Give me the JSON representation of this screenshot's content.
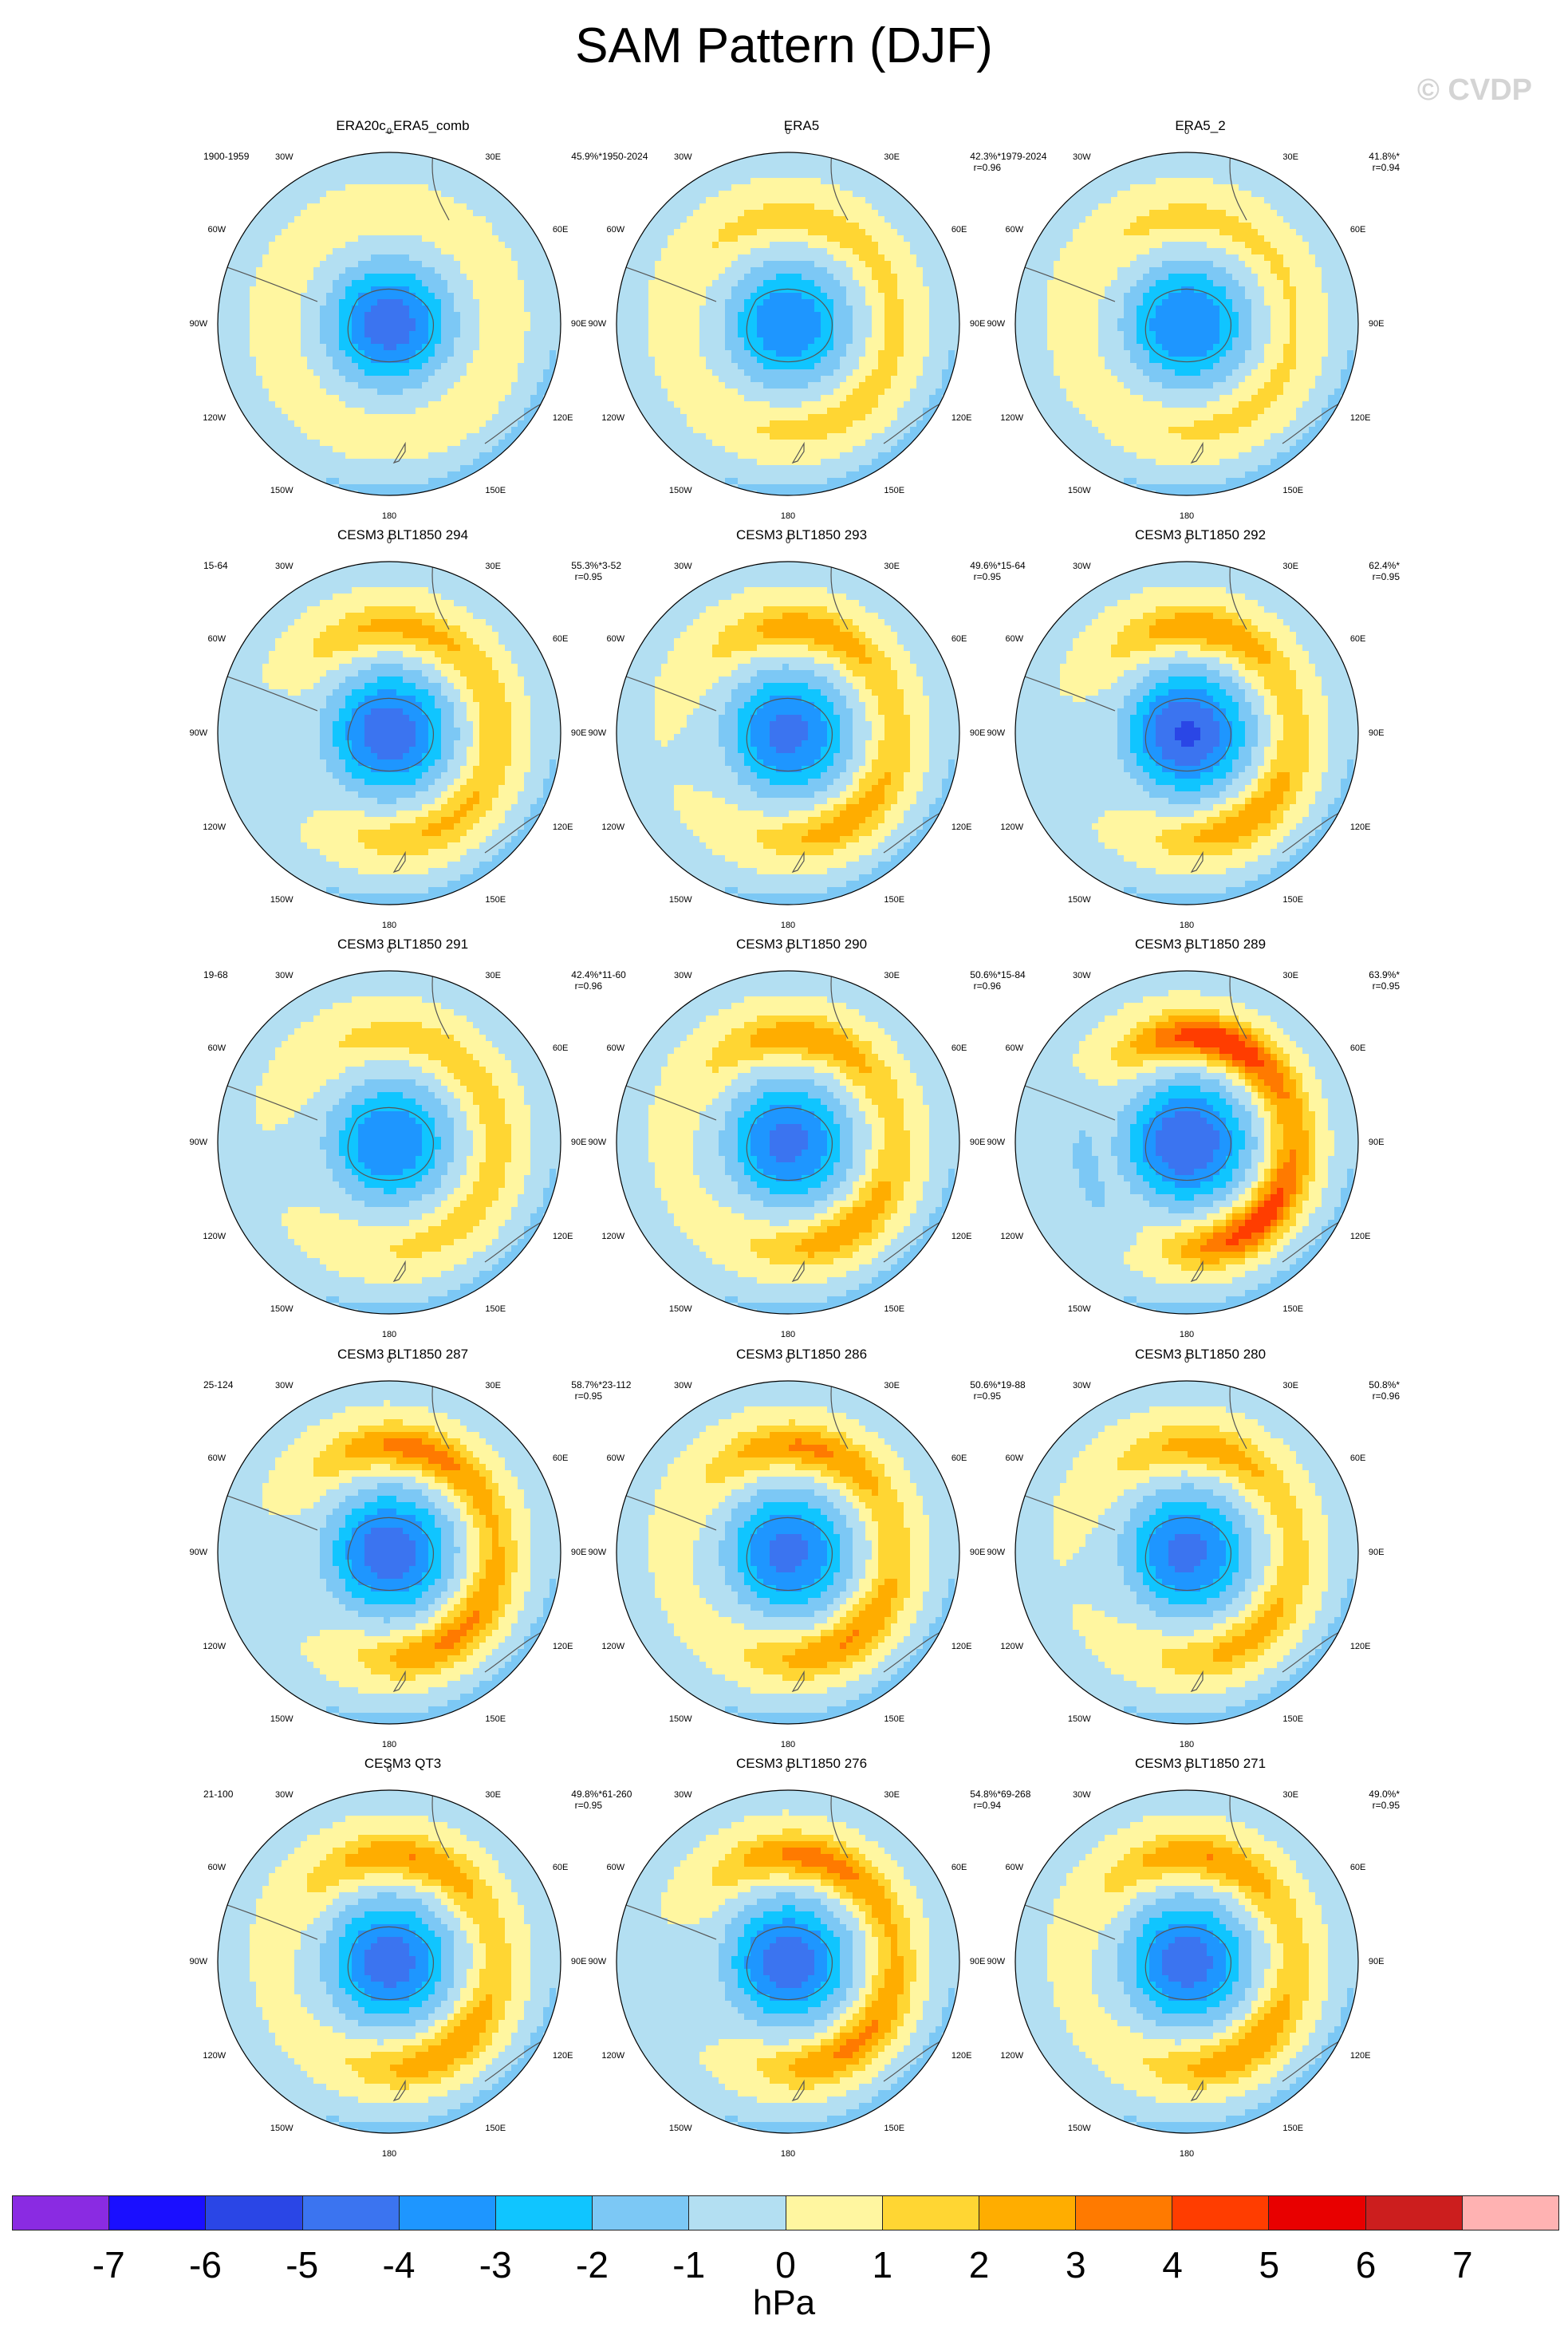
{
  "figure": {
    "title": "SAM Pattern (DJF)",
    "copyright": "© CVDP"
  },
  "map_labels": {
    "top": "0",
    "bottom": "180",
    "upper_left": "30W",
    "upper_right": "30E",
    "mid_left_high": "60W",
    "mid_right_high": "60E",
    "left": "90W",
    "right": "90E",
    "mid_left_low": "120W",
    "mid_right_low": "120E",
    "lower_left": "150W",
    "lower_right": "150E"
  },
  "colorbar": {
    "units": "hPa",
    "colors": [
      "#8a2be2",
      "#1a0fff",
      "#2a46e6",
      "#3b74f0",
      "#1e96ff",
      "#10c5ff",
      "#7cc8f5",
      "#b3dff2",
      "#fff6a0",
      "#ffd633",
      "#ffad00",
      "#ff7a00",
      "#ff3d00",
      "#e80000",
      "#cc1e1e",
      "#ffb2b2"
    ],
    "tick_labels": [
      "-7",
      "-6",
      "-5",
      "-4",
      "-3",
      "-2",
      "-1",
      "0",
      "1",
      "2",
      "3",
      "4",
      "5",
      "6",
      "7"
    ]
  },
  "chart_data": {
    "type": "heatmap",
    "title": "SAM Pattern (DJF)",
    "variable_units": "hPa",
    "projection": "south polar stereographic",
    "contour_levels": [
      -7,
      -6,
      -5,
      -4,
      -3,
      -2,
      -1,
      0,
      1,
      2,
      3,
      4,
      5,
      6,
      7
    ],
    "panels": [
      {
        "title": "ERA20c_ERA5_comb",
        "period": "1900-1959",
        "pct": "45.9%*",
        "r": "",
        "core": -4.5,
        "ring": 0.4,
        "wave": [
          0,
          0,
          0
        ]
      },
      {
        "title": "ERA5",
        "period": "1950-2024",
        "pct": "42.3%*",
        "r": "r=0.96",
        "core": -3.8,
        "ring": 1.1,
        "wave": [
          0.4,
          0.3,
          0
        ]
      },
      {
        "title": "ERA5_2",
        "period": "1979-2024",
        "pct": "41.8%*",
        "r": "r=0.94",
        "core": -4.0,
        "ring": 1.0,
        "wave": [
          0.4,
          0.3,
          0
        ]
      },
      {
        "title": "CESM3 BLT1850 294",
        "period": "15-64",
        "pct": "55.3%*",
        "r": "r=0.95",
        "core": -4.7,
        "ring": 1.3,
        "wave": [
          0.9,
          0.6,
          0
        ]
      },
      {
        "title": "CESM3 BLT1850 293",
        "period": "3-52",
        "pct": "49.6%*",
        "r": "r=0.95",
        "core": -4.3,
        "ring": 1.5,
        "wave": [
          0.7,
          0.5,
          0.2
        ]
      },
      {
        "title": "CESM3 BLT1850 292",
        "period": "15-64",
        "pct": "62.4%*",
        "r": "r=0.95",
        "core": -5.1,
        "ring": 1.5,
        "wave": [
          0.8,
          0.6,
          0.2
        ]
      },
      {
        "title": "CESM3 BLT1850 291",
        "period": "19-68",
        "pct": "42.4%*",
        "r": "r=0.96",
        "core": -3.9,
        "ring": 1.0,
        "wave": [
          0.8,
          0.3,
          0
        ]
      },
      {
        "title": "CESM3 BLT1850 290",
        "period": "11-60",
        "pct": "50.6%*",
        "r": "r=0.96",
        "core": -4.3,
        "ring": 1.6,
        "wave": [
          0.6,
          0.5,
          0.2
        ]
      },
      {
        "title": "CESM3 BLT1850 289",
        "period": "15-84",
        "pct": "63.9%*",
        "r": "r=0.95",
        "core": -5.0,
        "ring": 2.2,
        "wave": [
          1.2,
          0.6,
          0.3
        ]
      },
      {
        "title": "CESM3 BLT1850 287",
        "period": "25-124",
        "pct": "58.7%*",
        "r": "r=0.95",
        "core": -4.7,
        "ring": 1.8,
        "wave": [
          0.9,
          0.5,
          0.2
        ]
      },
      {
        "title": "CESM3 BLT1850 286",
        "period": "23-112",
        "pct": "50.6%*",
        "r": "r=0.95",
        "core": -4.3,
        "ring": 1.8,
        "wave": [
          0.6,
          0.5,
          0.2
        ]
      },
      {
        "title": "CESM3 BLT1850 280",
        "period": "19-88",
        "pct": "50.8%*",
        "r": "r=0.96",
        "core": -4.3,
        "ring": 1.4,
        "wave": [
          0.7,
          0.5,
          0.2
        ]
      },
      {
        "title": "CESM3 QT3",
        "period": "21-100",
        "pct": "49.8%*",
        "r": "r=0.95",
        "core": -4.5,
        "ring": 1.7,
        "wave": [
          0.6,
          0.5,
          0.2
        ]
      },
      {
        "title": "CESM3 BLT1850 276",
        "period": "61-260",
        "pct": "54.8%*",
        "r": "r=0.94",
        "core": -4.6,
        "ring": 1.8,
        "wave": [
          0.9,
          0.5,
          0.2
        ]
      },
      {
        "title": "CESM3 BLT1850 271",
        "period": "69-268",
        "pct": "49.0%*",
        "r": "r=0.95",
        "core": -4.5,
        "ring": 1.7,
        "wave": [
          0.6,
          0.5,
          0.2
        ]
      }
    ]
  }
}
